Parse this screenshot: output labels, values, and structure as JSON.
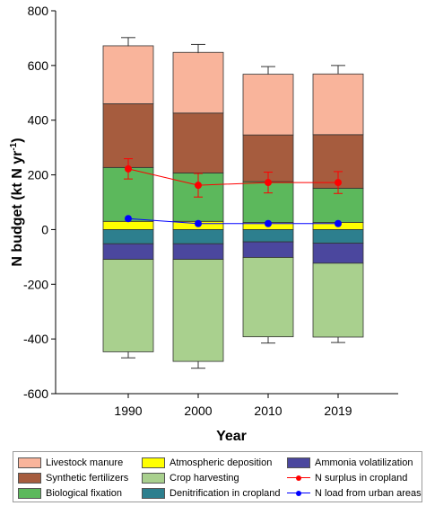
{
  "chart_data": {
    "type": "bar",
    "subtype": "stacked",
    "categories": [
      "1990",
      "2000",
      "2010",
      "2019"
    ],
    "xlabel": "Year",
    "ylabel_main": "N budget (kt N yr",
    "ylabel_sup": "-1",
    "ylabel_tail": ")",
    "ylim": [
      -600,
      800
    ],
    "yticks": [
      -600,
      -400,
      -200,
      0,
      200,
      400,
      600,
      800
    ],
    "grid": false,
    "legend_position": "bottom",
    "positive_series": [
      {
        "name": "Atmospheric deposition",
        "color": "#ffff00",
        "values": [
          30,
          30,
          26,
          26
        ]
      },
      {
        "name": "Biological fixation",
        "color": "#5cb85c",
        "values": [
          197,
          177,
          149,
          125
        ]
      },
      {
        "name": "Synthetic fertilizers",
        "color": "#a65c3e",
        "values": [
          233,
          219,
          171,
          196
        ]
      },
      {
        "name": "Livestock manure",
        "color": "#f9b49b",
        "values": [
          212,
          222,
          222,
          222
        ]
      }
    ],
    "negative_series": [
      {
        "name": "Denitrification in cropland",
        "color": "#2d7f8e",
        "values": [
          -52,
          -52,
          -45,
          -50
        ]
      },
      {
        "name": "Ammonia volatilization",
        "color": "#4b479e",
        "values": [
          -57,
          -57,
          -57,
          -73
        ]
      },
      {
        "name": "Crop harvesting",
        "color": "#a9d08e",
        "values": [
          -338,
          -373,
          -290,
          -270
        ]
      }
    ],
    "error_bars": {
      "top": [
        {
          "value": 670,
          "err": 32
        },
        {
          "value": 645,
          "err": 32
        },
        {
          "value": 568,
          "err": 28
        },
        {
          "value": 570,
          "err": 30
        }
      ],
      "bottom": [
        {
          "value": -447,
          "err": 22
        },
        {
          "value": -482,
          "err": 25
        },
        {
          "value": -393,
          "err": 22
        },
        {
          "value": -393,
          "err": 20
        }
      ]
    },
    "line_series": [
      {
        "name": "N surplus in cropland",
        "color": "#ff0000",
        "values": [
          222,
          162,
          172,
          172
        ],
        "errors": [
          37,
          43,
          38,
          40
        ]
      },
      {
        "name": "N load from urban areas",
        "color": "#0000ff",
        "values": [
          40,
          22,
          22,
          22
        ]
      }
    ]
  },
  "legend": [
    {
      "label": "Livestock manure",
      "kind": "box",
      "color": "#f9b49b"
    },
    {
      "label": "Atmospheric deposition",
      "kind": "box",
      "color": "#ffff00"
    },
    {
      "label": "Ammonia volatilization",
      "kind": "box",
      "color": "#4b479e"
    },
    {
      "label": "Synthetic fertilizers",
      "kind": "box",
      "color": "#a65c3e"
    },
    {
      "label": "Crop harvesting",
      "kind": "box",
      "color": "#a9d08e"
    },
    {
      "label": "N surplus in cropland",
      "kind": "line",
      "color": "#ff0000"
    },
    {
      "label": "Biological fixation",
      "kind": "box",
      "color": "#5cb85c"
    },
    {
      "label": "Denitrification in cropland",
      "kind": "box",
      "color": "#2d7f8e"
    },
    {
      "label": "N load from urban areas",
      "kind": "line",
      "color": "#0000ff"
    }
  ]
}
